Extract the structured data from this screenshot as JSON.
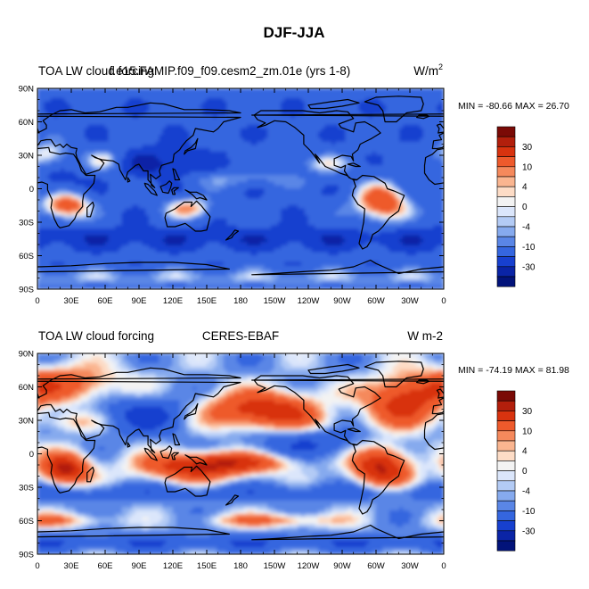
{
  "figure": {
    "title": "DJF-JJA"
  },
  "panels": [
    {
      "left_title": "TOA LW cloud forcing",
      "center_title": "f.e15.FAMIP.f09_f09.cesm2_zm.01e (yrs 1-8)",
      "units": "W/m",
      "units_sup": "2",
      "stats": "MIN = -80.66 MAX =  26.70",
      "pattern": "model"
    },
    {
      "left_title": "TOA LW cloud forcing",
      "center_title": "CERES-EBAF",
      "units": "W m-2",
      "units_sup": "",
      "stats": "MIN = -74.19 MAX =  81.98",
      "pattern": "obs"
    }
  ],
  "lat_labels": [
    "90N",
    "60N",
    "30N",
    "0",
    "30S",
    "60S",
    "90S"
  ],
  "lon_labels": [
    "0",
    "30E",
    "60E",
    "90E",
    "120E",
    "150E",
    "180",
    "150W",
    "120W",
    "90W",
    "60W",
    "30W",
    "0"
  ],
  "colorbar": {
    "labels": [
      "30",
      "10",
      "4",
      "0",
      "-4",
      "-10",
      "-30"
    ],
    "colors": [
      "#7a0a06",
      "#b21f0c",
      "#d8330f",
      "#ee5a2c",
      "#f5895c",
      "#fab590",
      "#fddcc6",
      "#f3f3f3",
      "#dbe6fb",
      "#b3cbf5",
      "#86aaee",
      "#5a86e6",
      "#3566df",
      "#1740cf",
      "#0a24a6",
      "#02137a"
    ]
  }
}
